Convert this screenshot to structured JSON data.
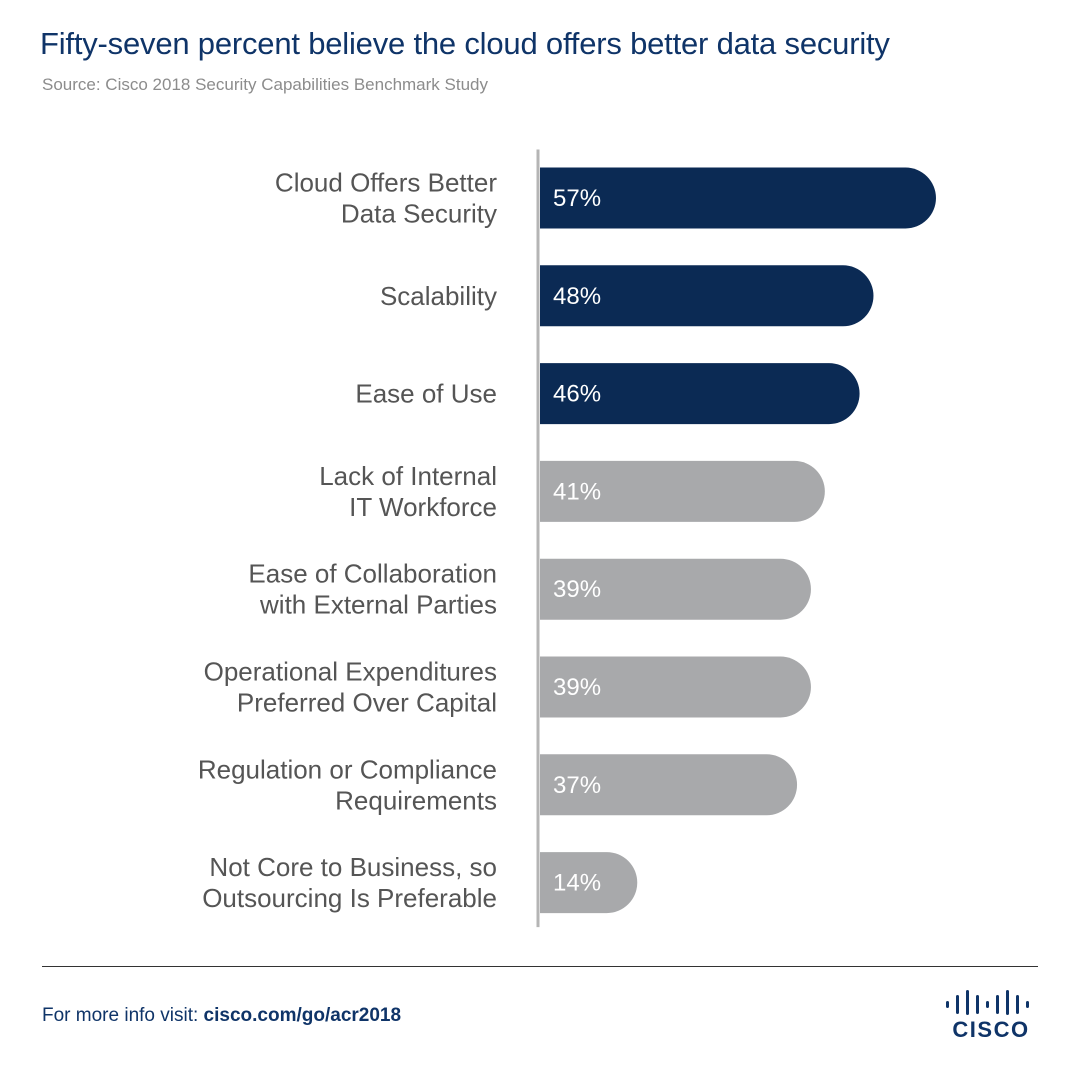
{
  "title": "Fifty-seven percent believe the cloud offers better data security",
  "source": "Source: Cisco 2018 Security Capabilities Benchmark Study",
  "footer": {
    "prefix": "For more info visit: ",
    "link": "cisco.com/go/acr2018"
  },
  "logo": {
    "wordmark": "CISCO",
    "icon": "cisco-bridge-logo-icon"
  },
  "colors": {
    "highlight": "#0b2a54",
    "muted": "#a8a9ab",
    "axis": "#b5b5b5"
  },
  "chart_data": {
    "type": "bar",
    "orientation": "horizontal",
    "categories": [
      [
        "Cloud Offers Better",
        "Data Security"
      ],
      [
        "Scalability"
      ],
      [
        "Ease of Use"
      ],
      [
        "Lack of Internal",
        "IT Workforce"
      ],
      [
        "Ease of Collaboration",
        "with External Parties"
      ],
      [
        "Operational Expenditures",
        "Preferred Over Capital"
      ],
      [
        "Regulation or Compliance",
        "Requirements"
      ],
      [
        "Not Core to Business, so",
        "Outsourcing Is Preferable"
      ]
    ],
    "values": [
      57,
      48,
      46,
      41,
      39,
      39,
      37,
      14
    ],
    "value_labels": [
      "57%",
      "48%",
      "46%",
      "41%",
      "39%",
      "39%",
      "37%",
      "14%"
    ],
    "highlighted": [
      true,
      true,
      true,
      false,
      false,
      false,
      false,
      false
    ],
    "unit": "%",
    "xlim": [
      0,
      57
    ],
    "grid": false,
    "legend": "none"
  }
}
